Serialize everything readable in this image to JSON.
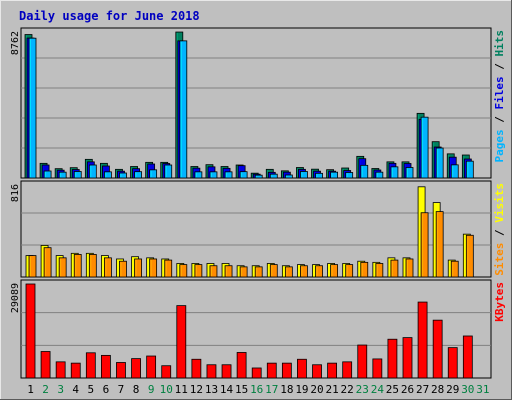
{
  "title": "Daily usage for June 2018",
  "colors": {
    "background": "#bfbfbf",
    "title": "#0000c0",
    "hits": "#00805f",
    "files": "#0000e0",
    "pages": "#00b4ff",
    "visits": "#ffff00",
    "sites": "#ff8c00",
    "kbytes": "#ff0000",
    "weekday": "#000000",
    "weekend": "#008040"
  },
  "chart_data": [
    {
      "type": "bar",
      "panel": "hits-files-pages",
      "max_label": "8762",
      "ylim": [
        0,
        8762
      ],
      "legend_rotated": [
        "Pages",
        "Files",
        "Hits"
      ],
      "categories": [
        "1",
        "2",
        "3",
        "4",
        "5",
        "6",
        "7",
        "8",
        "9",
        "10",
        "11",
        "12",
        "13",
        "14",
        "15",
        "16",
        "17",
        "18",
        "19",
        "20",
        "21",
        "22",
        "23",
        "24",
        "25",
        "26",
        "27",
        "28",
        "29",
        "30",
        "31"
      ],
      "series": [
        {
          "name": "Hits",
          "values": [
            8610,
            880,
            560,
            620,
            1120,
            880,
            520,
            690,
            940,
            940,
            8760,
            690,
            800,
            690,
            780,
            290,
            520,
            430,
            630,
            530,
            500,
            600,
            1300,
            570,
            970,
            970,
            3880,
            2180,
            1450,
            1380,
            0
          ]
        },
        {
          "name": "Files",
          "values": [
            8400,
            780,
            470,
            510,
            970,
            720,
            410,
            560,
            840,
            870,
            8230,
            590,
            670,
            580,
            740,
            230,
            340,
            350,
            520,
            410,
            410,
            450,
            1160,
            480,
            880,
            870,
            3520,
            1860,
            1250,
            1140,
            0
          ]
        },
        {
          "name": "Pages",
          "values": [
            8390,
            420,
            350,
            390,
            780,
            370,
            300,
            380,
            490,
            780,
            8230,
            370,
            370,
            370,
            380,
            170,
            230,
            180,
            390,
            280,
            350,
            330,
            760,
            350,
            670,
            630,
            3650,
            1800,
            790,
            1010,
            0
          ]
        }
      ]
    },
    {
      "type": "bar",
      "panel": "visits-sites",
      "max_label": "816",
      "ylim": [
        0,
        816
      ],
      "legend_rotated": [
        "Sites",
        "Visits"
      ],
      "categories": [
        "1",
        "2",
        "3",
        "4",
        "5",
        "6",
        "7",
        "8",
        "9",
        "10",
        "11",
        "12",
        "13",
        "14",
        "15",
        "16",
        "17",
        "18",
        "19",
        "20",
        "21",
        "22",
        "23",
        "24",
        "25",
        "26",
        "27",
        "28",
        "29",
        "30",
        "31"
      ],
      "series": [
        {
          "name": "Visits",
          "values": [
            190,
            280,
            190,
            210,
            210,
            190,
            160,
            180,
            170,
            160,
            120,
            120,
            120,
            120,
            100,
            100,
            120,
            100,
            110,
            110,
            120,
            120,
            140,
            130,
            170,
            170,
            800,
            660,
            150,
            380,
            0
          ]
        },
        {
          "name": "Sites",
          "values": [
            190,
            260,
            170,
            200,
            200,
            170,
            140,
            160,
            160,
            150,
            110,
            110,
            100,
            100,
            90,
            90,
            110,
            90,
            100,
            100,
            110,
            110,
            130,
            120,
            150,
            160,
            570,
            580,
            140,
            370,
            0
          ]
        }
      ]
    },
    {
      "type": "bar",
      "panel": "kbytes",
      "max_label": "29089",
      "ylim": [
        0,
        29089
      ],
      "legend_rotated": [
        "KBytes"
      ],
      "categories": [
        "1",
        "2",
        "3",
        "4",
        "5",
        "6",
        "7",
        "8",
        "9",
        "10",
        "11",
        "12",
        "13",
        "14",
        "15",
        "16",
        "17",
        "18",
        "19",
        "20",
        "21",
        "22",
        "23",
        "24",
        "25",
        "26",
        "27",
        "28",
        "29",
        "30",
        "31"
      ],
      "series": [
        {
          "name": "KBytes",
          "values": [
            29089,
            8200,
            5000,
            4600,
            7800,
            7000,
            4800,
            6000,
            6800,
            3800,
            22400,
            5800,
            4100,
            4100,
            7900,
            3100,
            4600,
            4600,
            5800,
            4100,
            4600,
            5000,
            10200,
            5900,
            12000,
            12500,
            23500,
            17900,
            9400,
            13000,
            0
          ]
        }
      ]
    }
  ],
  "weekend_days": [
    "2",
    "3",
    "9",
    "10",
    "16",
    "17",
    "23",
    "24",
    "30",
    "31"
  ]
}
